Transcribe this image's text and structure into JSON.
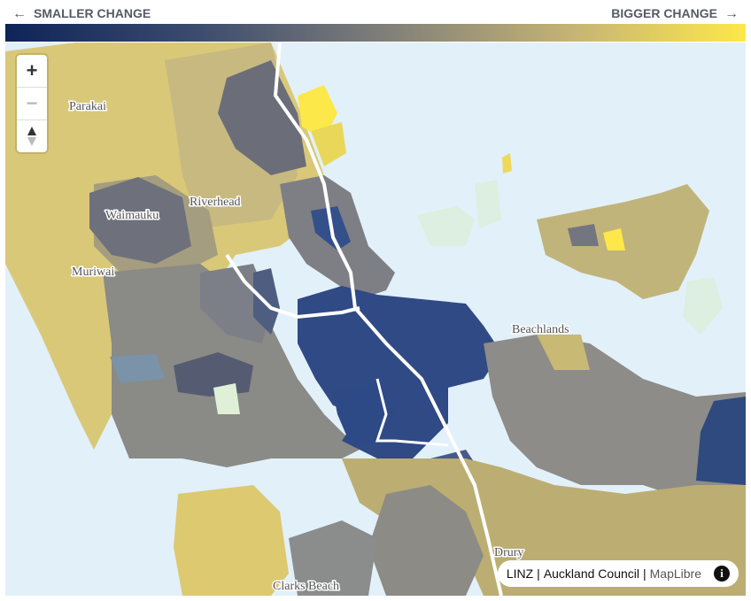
{
  "legend": {
    "left_arrow": "←",
    "left": "SMALLER CHANGE",
    "right": "BIGGER CHANGE",
    "right_arrow": "→"
  },
  "places": [
    "Parakai",
    "Riverhead",
    "Waimauku",
    "Muriwai",
    "Beachlands",
    "Drury",
    "Clarks Beach"
  ],
  "controls": {
    "zoom_in": "+",
    "zoom_out": "−"
  },
  "attribution": {
    "sources": [
      "LINZ",
      "Auckland Council",
      "MapLibre"
    ],
    "separator": "|"
  }
}
